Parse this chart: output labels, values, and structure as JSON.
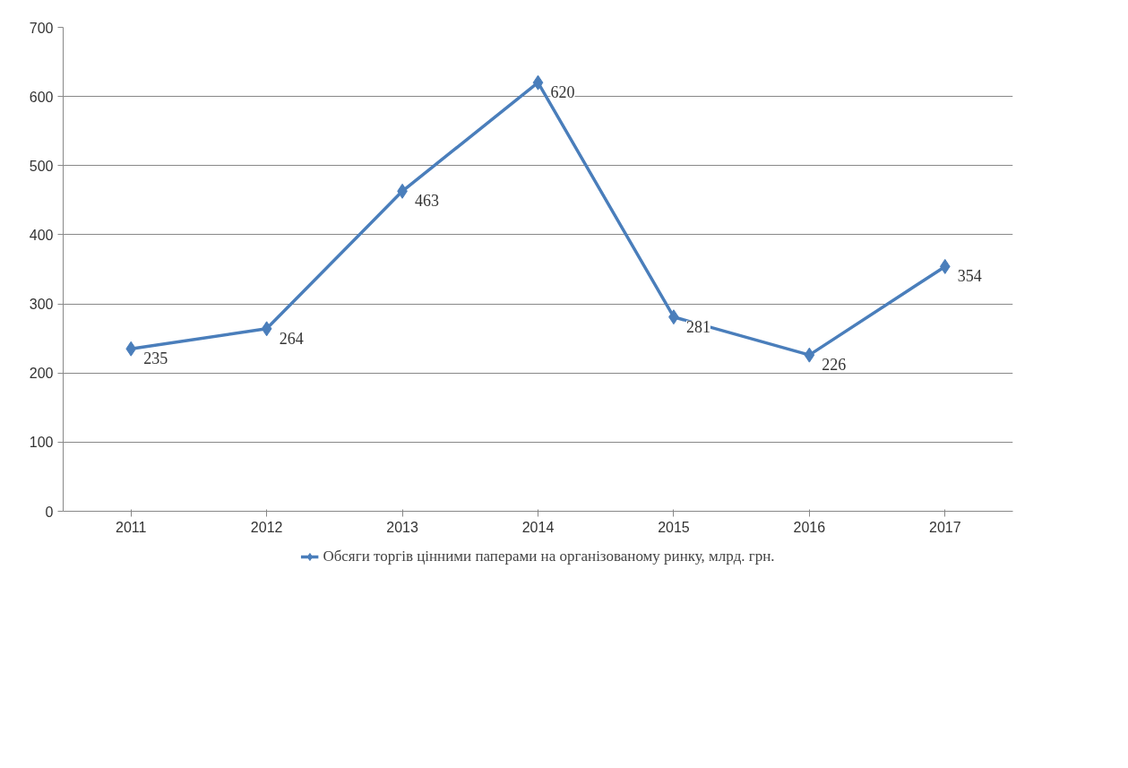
{
  "chart_data": {
    "type": "line",
    "categories": [
      "2011",
      "2012",
      "2013",
      "2014",
      "2015",
      "2016",
      "2017"
    ],
    "series": [
      {
        "name": "Обсяги торгів цінними паперами на організованому ринку, млрд. грн.",
        "color": "#4a7ebb",
        "values": [
          235,
          264,
          463,
          620,
          281,
          226,
          354
        ]
      }
    ],
    "ylim": [
      0,
      700
    ],
    "yticks": [
      0,
      100,
      200,
      300,
      400,
      500,
      600,
      700
    ],
    "grid": "y",
    "legend": "bottom",
    "marker": "diamond",
    "line_style": "solid",
    "data_labels": true
  }
}
